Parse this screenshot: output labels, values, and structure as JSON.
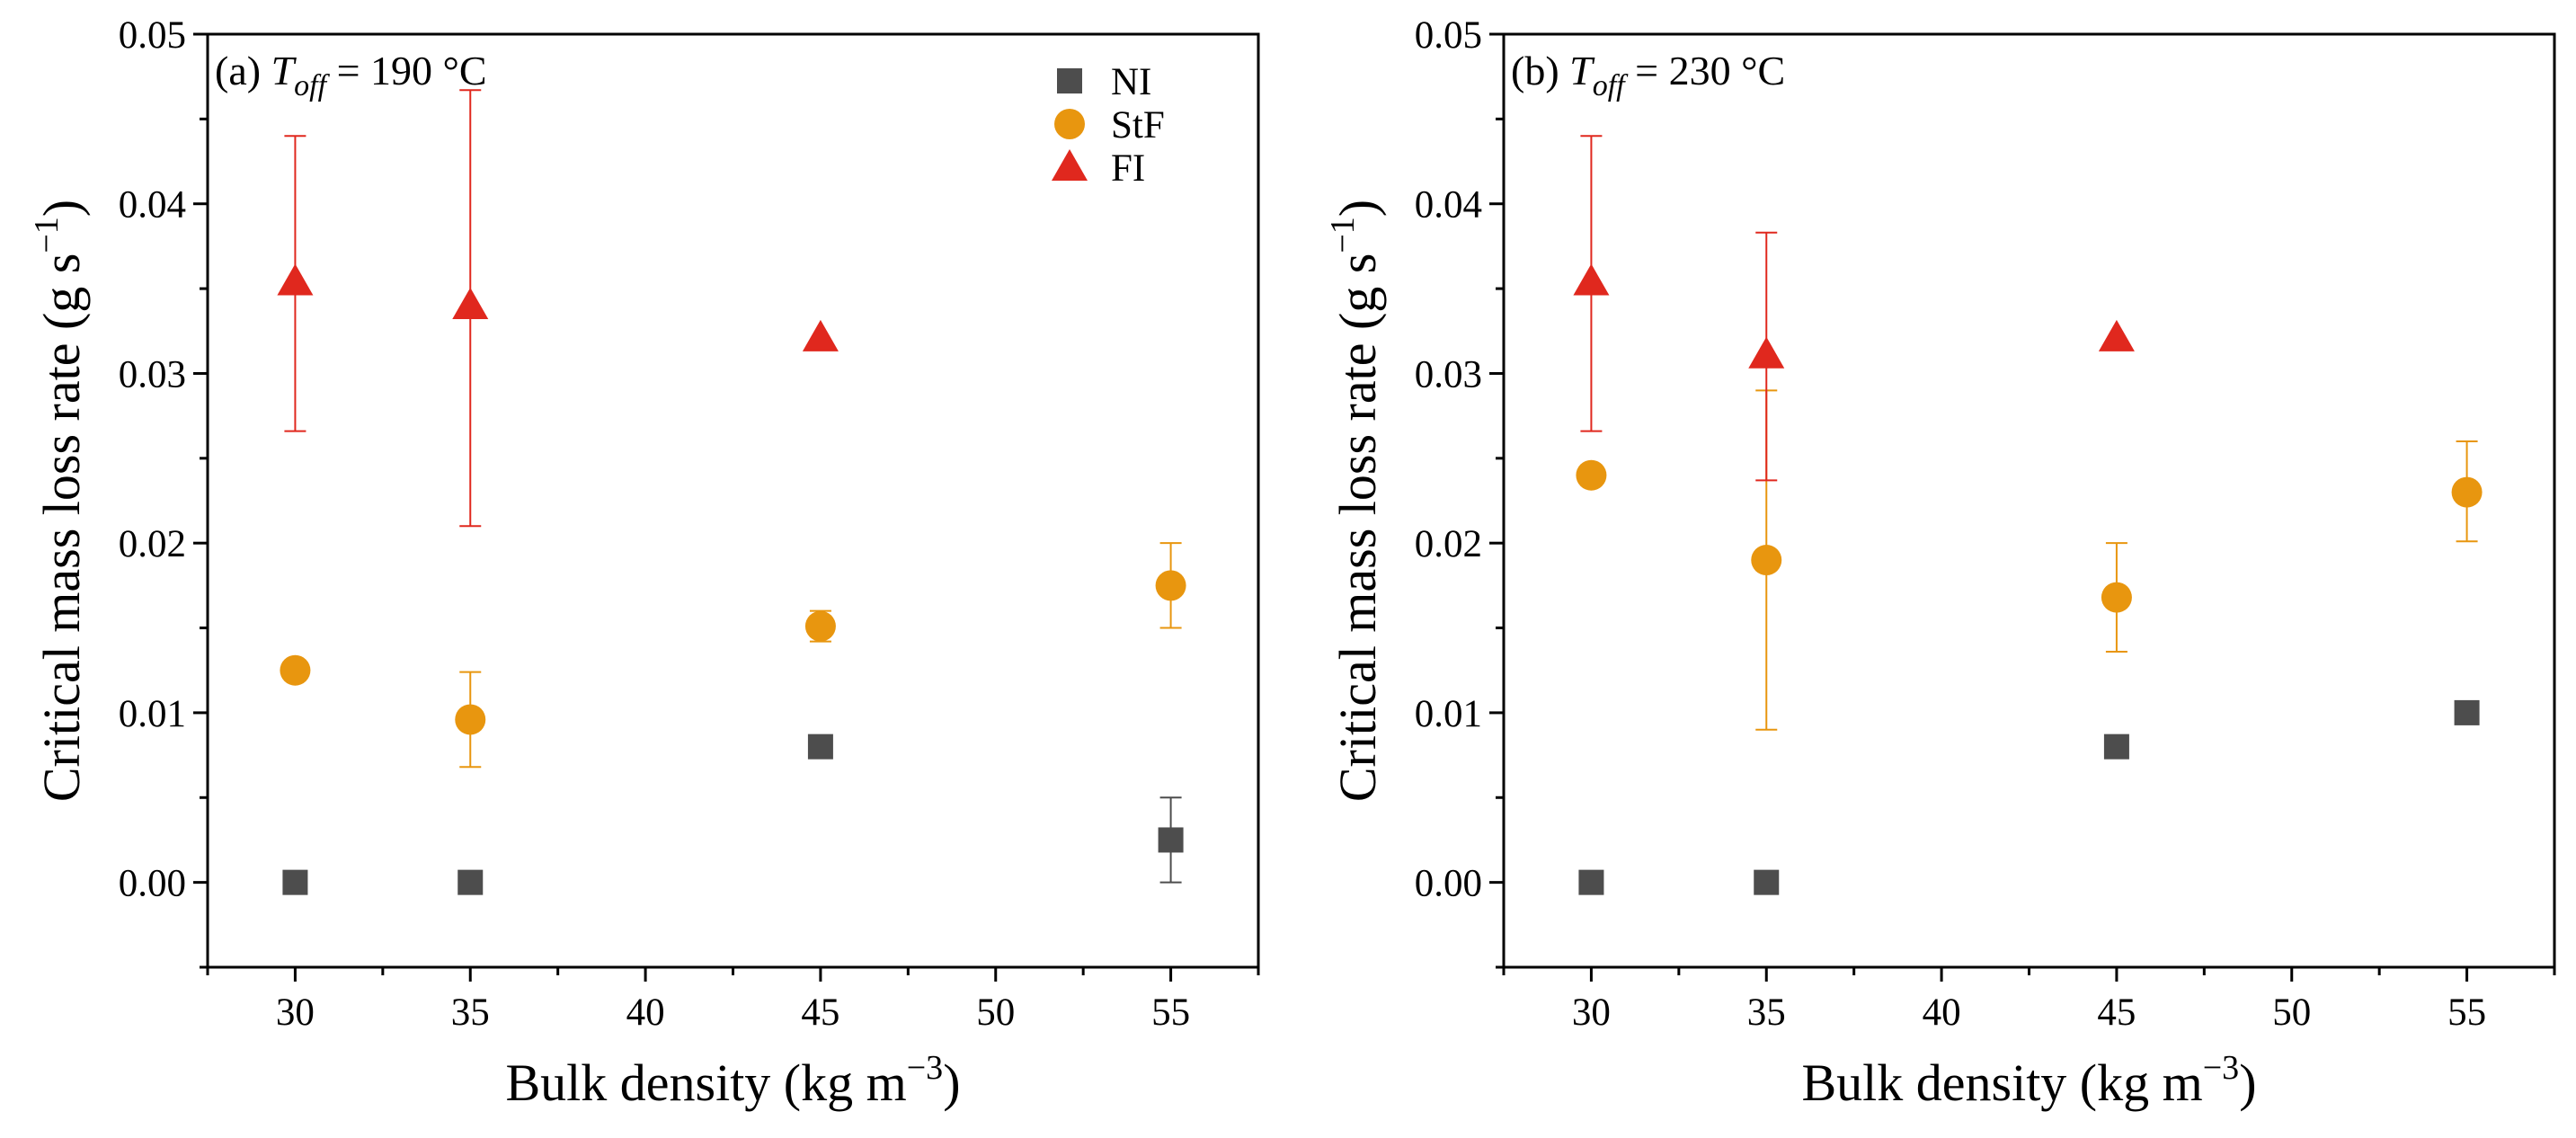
{
  "chart_data": [
    {
      "type": "scatter",
      "panel": "a",
      "title": {
        "prefix": "(a) ",
        "symbol": "T",
        "subscript": "off",
        "suffix": " = 190 °C"
      },
      "xlabel": {
        "text": "Bulk density (kg m",
        "sup": "−3",
        "close": ")"
      },
      "ylabel": {
        "text": "Critical mass loss rate (g s",
        "sup": "−1",
        "close": ")"
      },
      "xlim": [
        27.5,
        57.5
      ],
      "ylim": [
        -0.005,
        0.05
      ],
      "xticks": [
        30,
        35,
        40,
        45,
        50,
        55
      ],
      "yticks": [
        0.0,
        0.01,
        0.02,
        0.03,
        0.04,
        0.05
      ],
      "ytick_labels": [
        "0.00",
        "0.01",
        "0.02",
        "0.03",
        "0.04",
        "0.05"
      ],
      "legend": {
        "location": "top-right",
        "entries": [
          "NI",
          "StF",
          "FI"
        ]
      },
      "series": [
        {
          "name": "NI",
          "marker": "square",
          "color": "#4d4d4d",
          "points": [
            {
              "x": 30,
              "y": 0.0
            },
            {
              "x": 35,
              "y": 0.0
            },
            {
              "x": 45,
              "y": 0.008
            },
            {
              "x": 55,
              "y": 0.0025,
              "err_low": 0.0,
              "err_high": 0.005
            }
          ]
        },
        {
          "name": "StF",
          "marker": "circle",
          "color": "#e8960f",
          "points": [
            {
              "x": 30,
              "y": 0.0125
            },
            {
              "x": 35,
              "y": 0.0096,
              "err_low": 0.0068,
              "err_high": 0.0124
            },
            {
              "x": 45,
              "y": 0.0151,
              "err_low": 0.0142,
              "err_high": 0.016
            },
            {
              "x": 55,
              "y": 0.0175,
              "err_low": 0.015,
              "err_high": 0.02
            }
          ]
        },
        {
          "name": "FI",
          "marker": "triangle",
          "color": "#e0281e",
          "points": [
            {
              "x": 30,
              "y": 0.0354,
              "err_low": 0.0266,
              "err_high": 0.044
            },
            {
              "x": 35,
              "y": 0.034,
              "err_low": 0.021,
              "err_high": 0.0467
            },
            {
              "x": 45,
              "y": 0.0321
            }
          ]
        }
      ]
    },
    {
      "type": "scatter",
      "panel": "b",
      "title": {
        "prefix": "(b) ",
        "symbol": "T",
        "subscript": "off",
        "suffix": " = 230 °C"
      },
      "xlabel": {
        "text": "Bulk density (kg m",
        "sup": "−3",
        "close": ")"
      },
      "ylabel": {
        "text": "Critical mass loss rate (g s",
        "sup": "−1",
        "close": ")"
      },
      "xlim": [
        27.5,
        57.5
      ],
      "ylim": [
        -0.005,
        0.05
      ],
      "xticks": [
        30,
        35,
        40,
        45,
        50,
        55
      ],
      "yticks": [
        0.0,
        0.01,
        0.02,
        0.03,
        0.04,
        0.05
      ],
      "ytick_labels": [
        "0.00",
        "0.01",
        "0.02",
        "0.03",
        "0.04",
        "0.05"
      ],
      "legend": null,
      "series": [
        {
          "name": "NI",
          "marker": "square",
          "color": "#4d4d4d",
          "points": [
            {
              "x": 30,
              "y": 0.0
            },
            {
              "x": 35,
              "y": 0.0
            },
            {
              "x": 45,
              "y": 0.008
            },
            {
              "x": 55,
              "y": 0.01
            }
          ]
        },
        {
          "name": "StF",
          "marker": "circle",
          "color": "#e8960f",
          "points": [
            {
              "x": 30,
              "y": 0.024
            },
            {
              "x": 35,
              "y": 0.019,
              "err_low": 0.009,
              "err_high": 0.029
            },
            {
              "x": 45,
              "y": 0.0168,
              "err_low": 0.0136,
              "err_high": 0.02
            },
            {
              "x": 55,
              "y": 0.023,
              "err_low": 0.0201,
              "err_high": 0.026
            }
          ]
        },
        {
          "name": "FI",
          "marker": "triangle",
          "color": "#e0281e",
          "points": [
            {
              "x": 30,
              "y": 0.0354,
              "err_low": 0.0266,
              "err_high": 0.044
            },
            {
              "x": 35,
              "y": 0.0311,
              "err_low": 0.0237,
              "err_high": 0.0383
            },
            {
              "x": 45,
              "y": 0.0321
            }
          ]
        }
      ]
    }
  ]
}
